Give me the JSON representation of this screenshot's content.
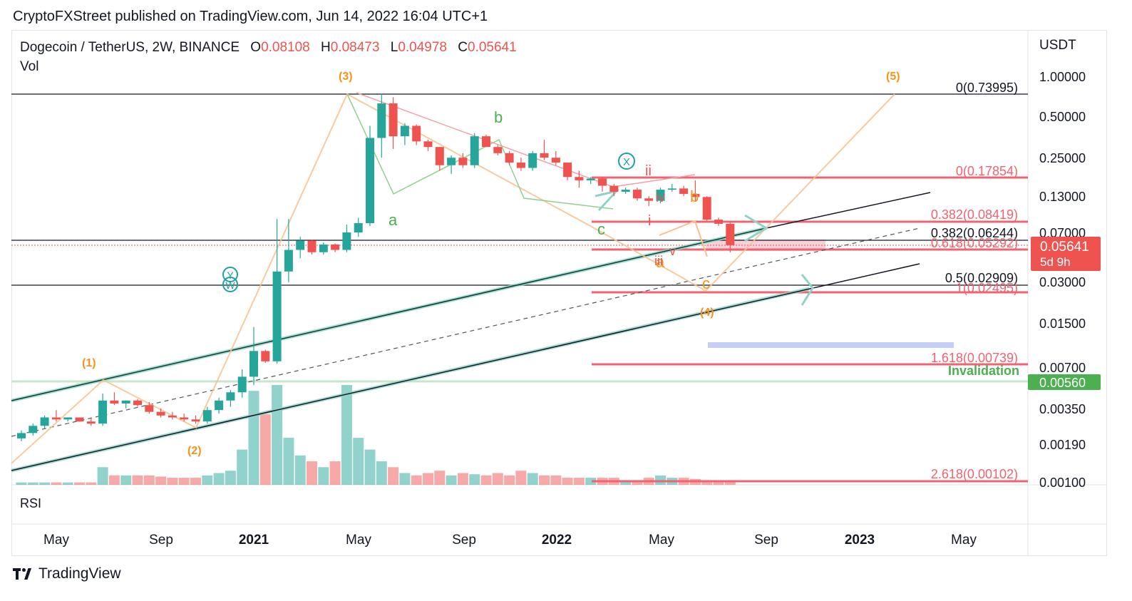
{
  "header": {
    "published": "CryptoFXStreet published on TradingView.com, Jun 14, 2022 16:04 UTC+1"
  },
  "symbol": {
    "name": "Dogecoin / TetherUS, 2W, BINANCE",
    "o_label": "O",
    "o": "0.08108",
    "h_label": "H",
    "h": "0.08473",
    "l_label": "L",
    "l": "0.04978",
    "c_label": "C",
    "c": "0.05641"
  },
  "vol_label": "Vol",
  "rsi_label": "RSI",
  "currency": "USDT",
  "brand": "TradingView",
  "price_tag": {
    "value": "0.05641",
    "countdown": "5d 9h"
  },
  "invalidation": {
    "label": "Invalidation",
    "value": "0.00560"
  },
  "fib_labels": [
    {
      "text": "0(0.73995)",
      "color": "#131722"
    },
    {
      "text": "0(0.17854)",
      "color": "#f06370"
    },
    {
      "text": "0.382(0.08419)",
      "color": "#f06370"
    },
    {
      "text": "0.382(0.06244)",
      "color": "#131722"
    },
    {
      "text": "0.618(0.05292)",
      "color": "#f06370"
    },
    {
      "text": "0.5(0.02909)",
      "color": "#131722"
    },
    {
      "text": "1(0.02495)",
      "color": "#f06370"
    },
    {
      "text": "1.618(0.00739)",
      "color": "#f06370"
    },
    {
      "text": "2.618(0.00102)",
      "color": "#f06370"
    }
  ],
  "wave_labels": [
    {
      "text": "(1)",
      "color": "#f7931a"
    },
    {
      "text": "(2)",
      "color": "#f7931a"
    },
    {
      "text": "(3)",
      "color": "#f7931a"
    },
    {
      "text": "(4)",
      "color": "#f7931a"
    },
    {
      "text": "(5)",
      "color": "#f7931a"
    },
    {
      "text": "a",
      "color": "#4caf50"
    },
    {
      "text": "b",
      "color": "#4caf50"
    },
    {
      "text": "c",
      "color": "#4caf50"
    },
    {
      "text": "b",
      "color": "#f7931a"
    },
    {
      "text": "c",
      "color": "#f7931a"
    },
    {
      "text": "a",
      "color": "#f7931a"
    },
    {
      "text": "i",
      "color": "#ef5350"
    },
    {
      "text": "ii",
      "color": "#ef5350"
    },
    {
      "text": "iii",
      "color": "#ef5350"
    },
    {
      "text": "iv",
      "color": "#ef5350"
    },
    {
      "text": "v",
      "color": "#ef5350"
    },
    {
      "text": "X",
      "color": "#20a0a0"
    },
    {
      "text": "W",
      "color": "#20a0a0"
    },
    {
      "text": "Y",
      "color": "#20a0a0"
    }
  ],
  "colors": {
    "up": "#26a69a",
    "down": "#ef5350",
    "fib": "#f06370",
    "wave": "#f7931a",
    "channel": "#0b3d2e"
  },
  "chart_data": {
    "type": "candlestick",
    "title": "Dogecoin / TetherUS, 2W, BINANCE",
    "y_scale": "log",
    "ylim": [
      0.001,
      1.0
    ],
    "y_ticks": [
      "1.00000",
      "0.50000",
      "0.25000",
      "0.13000",
      "0.07000",
      "0.03000",
      "0.01500",
      "0.00700",
      "0.00350",
      "0.00190",
      "0.00100"
    ],
    "x_ticks": [
      "May",
      "Sep",
      "2021",
      "May",
      "Sep",
      "2022",
      "May",
      "Sep",
      "2023",
      "May"
    ],
    "candles": [
      {
        "o": 0.0021,
        "h": 0.0024,
        "l": 0.002,
        "c": 0.0023
      },
      {
        "o": 0.0023,
        "h": 0.0027,
        "l": 0.0022,
        "c": 0.0026
      },
      {
        "o": 0.0026,
        "h": 0.0031,
        "l": 0.0025,
        "c": 0.003
      },
      {
        "o": 0.003,
        "h": 0.0034,
        "l": 0.0028,
        "c": 0.0029
      },
      {
        "o": 0.0029,
        "h": 0.003,
        "l": 0.0028,
        "c": 0.003
      },
      {
        "o": 0.003,
        "h": 0.003,
        "l": 0.0028,
        "c": 0.0028
      },
      {
        "o": 0.0028,
        "h": 0.003,
        "l": 0.0026,
        "c": 0.0027
      },
      {
        "o": 0.0027,
        "h": 0.0045,
        "l": 0.0026,
        "c": 0.004
      },
      {
        "o": 0.004,
        "h": 0.0046,
        "l": 0.0037,
        "c": 0.0038
      },
      {
        "o": 0.0038,
        "h": 0.004,
        "l": 0.0035,
        "c": 0.004
      },
      {
        "o": 0.004,
        "h": 0.0041,
        "l": 0.0036,
        "c": 0.0037
      },
      {
        "o": 0.0037,
        "h": 0.0039,
        "l": 0.0032,
        "c": 0.0033
      },
      {
        "o": 0.0033,
        "h": 0.0035,
        "l": 0.003,
        "c": 0.0031
      },
      {
        "o": 0.0031,
        "h": 0.0033,
        "l": 0.0029,
        "c": 0.003
      },
      {
        "o": 0.003,
        "h": 0.0032,
        "l": 0.0028,
        "c": 0.0029
      },
      {
        "o": 0.0029,
        "h": 0.0031,
        "l": 0.0027,
        "c": 0.0028
      },
      {
        "o": 0.0028,
        "h": 0.0036,
        "l": 0.0027,
        "c": 0.0034
      },
      {
        "o": 0.0034,
        "h": 0.0042,
        "l": 0.0032,
        "c": 0.004
      },
      {
        "o": 0.004,
        "h": 0.0048,
        "l": 0.0036,
        "c": 0.0046
      },
      {
        "o": 0.0046,
        "h": 0.0068,
        "l": 0.0042,
        "c": 0.006
      },
      {
        "o": 0.006,
        "h": 0.014,
        "l": 0.0052,
        "c": 0.0093
      },
      {
        "o": 0.0093,
        "h": 0.0095,
        "l": 0.0076,
        "c": 0.0078
      },
      {
        "o": 0.0078,
        "h": 0.088,
        "l": 0.0075,
        "c": 0.036
      },
      {
        "o": 0.036,
        "h": 0.088,
        "l": 0.03,
        "c": 0.052
      },
      {
        "o": 0.052,
        "h": 0.065,
        "l": 0.045,
        "c": 0.061
      },
      {
        "o": 0.061,
        "h": 0.062,
        "l": 0.048,
        "c": 0.05
      },
      {
        "o": 0.05,
        "h": 0.059,
        "l": 0.048,
        "c": 0.057
      },
      {
        "o": 0.057,
        "h": 0.058,
        "l": 0.05,
        "c": 0.052
      },
      {
        "o": 0.052,
        "h": 0.08,
        "l": 0.05,
        "c": 0.07
      },
      {
        "o": 0.07,
        "h": 0.09,
        "l": 0.065,
        "c": 0.082
      },
      {
        "o": 0.082,
        "h": 0.43,
        "l": 0.078,
        "c": 0.35
      },
      {
        "o": 0.35,
        "h": 0.74,
        "l": 0.25,
        "c": 0.63
      },
      {
        "o": 0.63,
        "h": 0.7,
        "l": 0.29,
        "c": 0.36
      },
      {
        "o": 0.36,
        "h": 0.45,
        "l": 0.31,
        "c": 0.43
      },
      {
        "o": 0.43,
        "h": 0.44,
        "l": 0.31,
        "c": 0.33
      },
      {
        "o": 0.33,
        "h": 0.34,
        "l": 0.28,
        "c": 0.3
      },
      {
        "o": 0.3,
        "h": 0.3,
        "l": 0.2,
        "c": 0.22
      },
      {
        "o": 0.22,
        "h": 0.26,
        "l": 0.19,
        "c": 0.25
      },
      {
        "o": 0.25,
        "h": 0.27,
        "l": 0.21,
        "c": 0.22
      },
      {
        "o": 0.22,
        "h": 0.38,
        "l": 0.21,
        "c": 0.36
      },
      {
        "o": 0.36,
        "h": 0.37,
        "l": 0.3,
        "c": 0.3
      },
      {
        "o": 0.3,
        "h": 0.31,
        "l": 0.26,
        "c": 0.27
      },
      {
        "o": 0.27,
        "h": 0.28,
        "l": 0.22,
        "c": 0.23
      },
      {
        "o": 0.23,
        "h": 0.25,
        "l": 0.2,
        "c": 0.21
      },
      {
        "o": 0.21,
        "h": 0.28,
        "l": 0.2,
        "c": 0.27
      },
      {
        "o": 0.27,
        "h": 0.34,
        "l": 0.24,
        "c": 0.25
      },
      {
        "o": 0.25,
        "h": 0.28,
        "l": 0.22,
        "c": 0.23
      },
      {
        "o": 0.23,
        "h": 0.23,
        "l": 0.17,
        "c": 0.18
      },
      {
        "o": 0.18,
        "h": 0.2,
        "l": 0.15,
        "c": 0.17
      },
      {
        "o": 0.17,
        "h": 0.18,
        "l": 0.16,
        "c": 0.175
      },
      {
        "o": 0.175,
        "h": 0.18,
        "l": 0.14,
        "c": 0.155
      },
      {
        "o": 0.155,
        "h": 0.16,
        "l": 0.13,
        "c": 0.14
      },
      {
        "o": 0.14,
        "h": 0.15,
        "l": 0.135,
        "c": 0.145
      },
      {
        "o": 0.145,
        "h": 0.15,
        "l": 0.12,
        "c": 0.125
      },
      {
        "o": 0.125,
        "h": 0.13,
        "l": 0.11,
        "c": 0.12
      },
      {
        "o": 0.12,
        "h": 0.15,
        "l": 0.115,
        "c": 0.145
      },
      {
        "o": 0.145,
        "h": 0.16,
        "l": 0.14,
        "c": 0.148
      },
      {
        "o": 0.148,
        "h": 0.155,
        "l": 0.13,
        "c": 0.135
      },
      {
        "o": 0.135,
        "h": 0.17,
        "l": 0.12,
        "c": 0.128
      },
      {
        "o": 0.128,
        "h": 0.13,
        "l": 0.085,
        "c": 0.087
      },
      {
        "o": 0.087,
        "h": 0.09,
        "l": 0.078,
        "c": 0.0811
      },
      {
        "o": 0.08108,
        "h": 0.08473,
        "l": 0.04978,
        "c": 0.05641
      }
    ],
    "volume": [
      2,
      2,
      2,
      2,
      2,
      2,
      2,
      15,
      8,
      8,
      8,
      8,
      7,
      6,
      6,
      6,
      8,
      10,
      12,
      30,
      80,
      60,
      85,
      40,
      25,
      20,
      15,
      20,
      85,
      40,
      30,
      20,
      15,
      10,
      8,
      10,
      12,
      8,
      10,
      9,
      8,
      10,
      8,
      12,
      10,
      8,
      8,
      6,
      6,
      6,
      6,
      6,
      4,
      4,
      6,
      8,
      6,
      6,
      5,
      4,
      3,
      3
    ],
    "fib_levels": [
      {
        "ratio": "0",
        "price": 0.73995
      },
      {
        "ratio": "0",
        "price": 0.17854
      },
      {
        "ratio": "0.382",
        "price": 0.08419
      },
      {
        "ratio": "0.382",
        "price": 0.06244
      },
      {
        "ratio": "0.618",
        "price": 0.05292
      },
      {
        "ratio": "0.5",
        "price": 0.02909
      },
      {
        "ratio": "1",
        "price": 0.02495
      },
      {
        "ratio": "1.618",
        "price": 0.00739
      },
      {
        "ratio": "2.618",
        "price": 0.00102
      }
    ],
    "last_price": 0.05641,
    "invalidation_price": 0.0056,
    "grid": false,
    "legend": "top-left"
  }
}
